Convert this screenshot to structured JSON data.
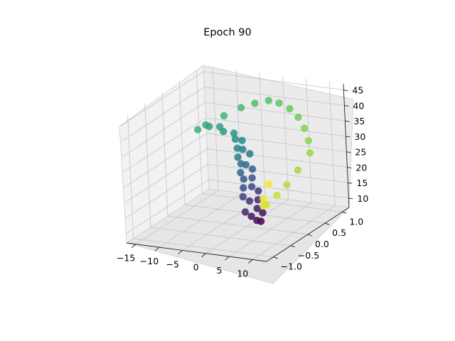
{
  "chart_data": {
    "type": "scatter",
    "title": "Epoch 90",
    "xlabel": "",
    "ylabel": "",
    "zlabel": "",
    "xlim": [
      -17,
      13
    ],
    "ylim": [
      -1.2,
      1.2
    ],
    "zlim": [
      7,
      47
    ],
    "x_ticks": [
      -15,
      -10,
      -5,
      0,
      5,
      10
    ],
    "y_ticks": [
      -1.0,
      -0.5,
      0.0,
      0.5,
      1.0
    ],
    "z_ticks": [
      10,
      15,
      20,
      25,
      30,
      35,
      40,
      45
    ],
    "x_tick_labels": [
      "−15",
      "−10",
      "−5",
      "0",
      "5",
      "10"
    ],
    "y_tick_labels": [
      "−1.0",
      "−0.5",
      "0.0",
      "0.5",
      "1.0"
    ],
    "z_tick_labels": [
      "10",
      "15",
      "20",
      "25",
      "30",
      "35",
      "40",
      "45"
    ],
    "colormap": "viridis",
    "grid": true,
    "series": [
      {
        "values": [
          {
            "x": 1.5,
            "y": 0.2,
            "z": 7.5
          },
          {
            "x": 1.4,
            "y": 0.1,
            "z": 8.5
          },
          {
            "x": 1.2,
            "y": 0.3,
            "z": 9.5
          },
          {
            "x": 1.0,
            "y": 0.0,
            "z": 10.5
          },
          {
            "x": 0.8,
            "y": 0.2,
            "z": 11.5
          },
          {
            "x": 0.5,
            "y": -0.1,
            "z": 12.5
          },
          {
            "x": 0.3,
            "y": 0.3,
            "z": 13.5
          },
          {
            "x": 0.0,
            "y": 0.1,
            "z": 14.5
          },
          {
            "x": -0.3,
            "y": 0.4,
            "z": 15.5
          },
          {
            "x": -0.6,
            "y": 0.0,
            "z": 16.5
          },
          {
            "x": -0.9,
            "y": 0.3,
            "z": 17.5
          },
          {
            "x": -1.2,
            "y": 0.1,
            "z": 18.5
          },
          {
            "x": -1.5,
            "y": 0.4,
            "z": 19.5
          },
          {
            "x": -1.8,
            "y": 0.2,
            "z": 20.5
          },
          {
            "x": -2.1,
            "y": 0.5,
            "z": 21.5
          },
          {
            "x": -2.4,
            "y": 0.2,
            "z": 22.5
          },
          {
            "x": -2.7,
            "y": 0.4,
            "z": 23.5
          },
          {
            "x": -3.0,
            "y": 0.3,
            "z": 24.5
          },
          {
            "x": -3.3,
            "y": 0.6,
            "z": 25.5
          },
          {
            "x": -3.6,
            "y": 0.3,
            "z": 26.5
          },
          {
            "x": -4.0,
            "y": 0.5,
            "z": 27.5
          },
          {
            "x": -4.4,
            "y": 0.4,
            "z": 28.5
          },
          {
            "x": -4.8,
            "y": 0.6,
            "z": 29.5
          },
          {
            "x": -5.5,
            "y": 0.5,
            "z": 30.5
          },
          {
            "x": -6.5,
            "y": 0.6,
            "z": 31.5
          },
          {
            "x": -8.0,
            "y": 0.5,
            "z": 32.5
          },
          {
            "x": -9.5,
            "y": 0.6,
            "z": 33.0
          },
          {
            "x": -11.0,
            "y": 0.5,
            "z": 33.5
          },
          {
            "x": -12.5,
            "y": 0.6,
            "z": 33.0
          },
          {
            "x": -13.5,
            "y": 0.5,
            "z": 32.0
          },
          {
            "x": -10.0,
            "y": 0.8,
            "z": 35.0
          },
          {
            "x": -7.0,
            "y": 0.9,
            "z": 37.5
          },
          {
            "x": -4.0,
            "y": 0.9,
            "z": 39.5
          },
          {
            "x": -1.0,
            "y": 0.9,
            "z": 41.0
          },
          {
            "x": 2.0,
            "y": 0.8,
            "z": 41.5
          },
          {
            "x": 5.0,
            "y": 0.7,
            "z": 41.0
          },
          {
            "x": 7.5,
            "y": 0.6,
            "z": 39.5
          },
          {
            "x": 9.5,
            "y": 0.5,
            "z": 37.0
          },
          {
            "x": 11.0,
            "y": 0.4,
            "z": 34.0
          },
          {
            "x": 12.0,
            "y": 0.3,
            "z": 31.0
          },
          {
            "x": 11.5,
            "y": 0.0,
            "z": 27.5
          },
          {
            "x": 10.5,
            "y": -0.2,
            "z": 24.0
          },
          {
            "x": 9.0,
            "y": -0.3,
            "z": 21.0
          },
          {
            "x": 7.5,
            "y": -0.4,
            "z": 18.5
          },
          {
            "x": 6.0,
            "y": -0.3,
            "z": 17.0
          },
          {
            "x": 4.5,
            "y": -0.1,
            "z": 17.5
          },
          {
            "x": 3.5,
            "y": 0.2,
            "z": 20.0
          }
        ]
      }
    ]
  }
}
